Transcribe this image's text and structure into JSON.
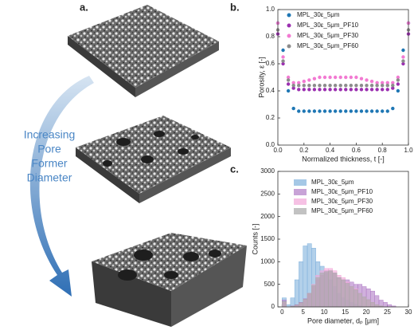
{
  "panel_a": {
    "label": "a.",
    "annotation": [
      "Increasing",
      "Pore",
      "Former",
      "Diameter"
    ]
  },
  "chart_data": [
    {
      "type": "scatter",
      "panel_label": "b.",
      "x_label": "Normalized thickness, t [-]",
      "y_label": "Porosity, ε [-]",
      "xlim": [
        0,
        1
      ],
      "ylim": [
        0,
        1
      ],
      "xticks": [
        {
          "value": 0,
          "label": "0.0"
        },
        0.2,
        0.4,
        0.6,
        0.8,
        {
          "value": 1,
          "label": "1.0"
        }
      ],
      "yticks": [
        {
          "value": 0,
          "label": "0.0"
        },
        0.2,
        0.4,
        0.6,
        0.8,
        {
          "value": 1,
          "label": "1.0"
        }
      ],
      "x": [
        0,
        0.04,
        0.08,
        0.12,
        0.16,
        0.2,
        0.24,
        0.28,
        0.32,
        0.36,
        0.4,
        0.44,
        0.48,
        0.52,
        0.56,
        0.6,
        0.64,
        0.68,
        0.72,
        0.76,
        0.8,
        0.84,
        0.88,
        0.92,
        0.96,
        1
      ],
      "series": [
        {
          "name": "MPL_30ε_5μm",
          "color": "#1f77b4",
          "values": [
            0.9,
            0.7,
            0.4,
            0.27,
            0.25,
            0.25,
            0.25,
            0.25,
            0.25,
            0.25,
            0.25,
            0.25,
            0.25,
            0.25,
            0.25,
            0.25,
            0.25,
            0.25,
            0.25,
            0.25,
            0.25,
            0.25,
            0.27,
            0.4,
            0.7,
            0.9
          ]
        },
        {
          "name": "MPL_30ε_5μm_PF10",
          "color": "#9b30b0",
          "values": [
            0.82,
            0.6,
            0.45,
            0.42,
            0.41,
            0.41,
            0.41,
            0.41,
            0.41,
            0.41,
            0.41,
            0.41,
            0.41,
            0.41,
            0.41,
            0.41,
            0.41,
            0.41,
            0.41,
            0.41,
            0.41,
            0.41,
            0.42,
            0.45,
            0.6,
            0.82
          ]
        },
        {
          "name": "MPL_30ε_5μm_PF30",
          "color": "#f27ad2",
          "values": [
            0.9,
            0.65,
            0.5,
            0.46,
            0.46,
            0.47,
            0.48,
            0.49,
            0.5,
            0.5,
            0.5,
            0.5,
            0.5,
            0.5,
            0.5,
            0.5,
            0.49,
            0.48,
            0.47,
            0.46,
            0.46,
            0.46,
            0.46,
            0.5,
            0.65,
            0.9
          ]
        },
        {
          "name": "MPL_30ε_5μm_PF60",
          "color": "#8c8c8c",
          "values": [
            0.85,
            0.62,
            0.48,
            0.44,
            0.44,
            0.44,
            0.44,
            0.44,
            0.44,
            0.44,
            0.44,
            0.44,
            0.44,
            0.44,
            0.44,
            0.44,
            0.44,
            0.44,
            0.44,
            0.44,
            0.44,
            0.44,
            0.44,
            0.48,
            0.62,
            0.85
          ]
        }
      ]
    },
    {
      "type": "histogram",
      "panel_label": "c.",
      "x_label": "Pore diameter, dₚ [μm]",
      "y_label": "Counts [-]",
      "xlim": [
        -1,
        30
      ],
      "ylim": [
        0,
        3000
      ],
      "xticks": [
        0,
        5,
        10,
        15,
        20,
        25,
        30
      ],
      "yticks": [
        0,
        500,
        1000,
        1500,
        2000,
        2500,
        3000
      ],
      "bins": [
        0,
        1,
        2,
        3,
        4,
        5,
        6,
        7,
        8,
        9,
        10,
        11,
        12,
        13,
        14,
        15,
        16,
        17,
        18,
        19,
        20,
        21,
        22,
        23,
        24,
        25,
        26,
        27
      ],
      "series": [
        {
          "name": "MPL_30ε_5μm",
          "color": "#7fb0dc",
          "values": [
            200,
            50,
            200,
            600,
            1000,
            1350,
            1400,
            1300,
            1000,
            900,
            750,
            600,
            450,
            300,
            200,
            150,
            100,
            60,
            30,
            10,
            0,
            0,
            0,
            0,
            0,
            0,
            0
          ]
        },
        {
          "name": "MPL_30ε_5μm_PF10",
          "color": "#b07cc6",
          "values": [
            150,
            0,
            20,
            50,
            100,
            180,
            300,
            450,
            600,
            700,
            800,
            800,
            750,
            650,
            600,
            600,
            550,
            500,
            500,
            450,
            400,
            350,
            250,
            150,
            100,
            50,
            20
          ]
        },
        {
          "name": "MPL_30ε_5μm_PF30",
          "color": "#f2a6d8",
          "values": [
            100,
            0,
            10,
            30,
            80,
            150,
            300,
            500,
            700,
            800,
            850,
            850,
            800,
            700,
            650,
            550,
            450,
            400,
            300,
            200,
            150,
            100,
            50,
            20,
            0,
            0,
            0
          ]
        },
        {
          "name": "MPL_30ε_5μm_PF60",
          "color": "#a8a8a8",
          "values": [
            120,
            0,
            15,
            40,
            90,
            170,
            300,
            480,
            650,
            750,
            780,
            800,
            750,
            650,
            600,
            520,
            450,
            380,
            300,
            220,
            160,
            100,
            50,
            20,
            0,
            0,
            0
          ]
        }
      ]
    }
  ]
}
